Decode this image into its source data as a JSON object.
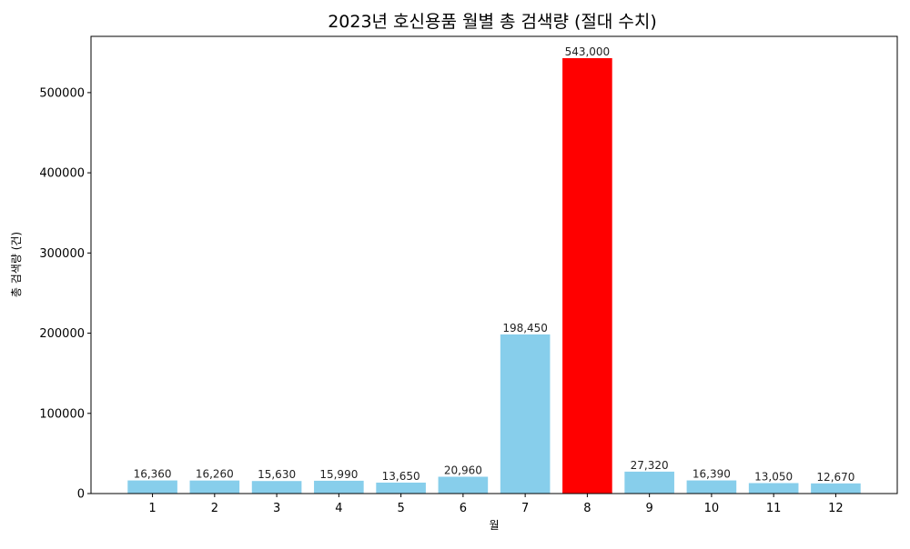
{
  "chart_data": {
    "type": "bar",
    "title": "2023년 호신용품 월별 총 검색량 (절대 수치)",
    "xlabel": "월",
    "ylabel": "총 검색량 (건)",
    "categories": [
      "1",
      "2",
      "3",
      "4",
      "5",
      "6",
      "7",
      "8",
      "9",
      "10",
      "11",
      "12"
    ],
    "values": [
      16360,
      16260,
      15630,
      15990,
      13650,
      20960,
      198450,
      543000,
      27320,
      16390,
      13050,
      12670
    ],
    "data_labels": [
      "16,360",
      "16,260",
      "15,630",
      "15,990",
      "13,650",
      "20,960",
      "198,450",
      "543,000",
      "27,320",
      "16,390",
      "13,050",
      "12,670"
    ],
    "ylim": [
      0,
      570150
    ],
    "yticks": [
      0,
      100000,
      200000,
      300000,
      400000,
      500000
    ],
    "ytick_labels": [
      "0",
      "100000",
      "200000",
      "300000",
      "400000",
      "500000"
    ],
    "grid": false,
    "highlight_index": 7,
    "colors": {
      "bar": "#87CEEB",
      "highlight": "#FF0000"
    }
  }
}
